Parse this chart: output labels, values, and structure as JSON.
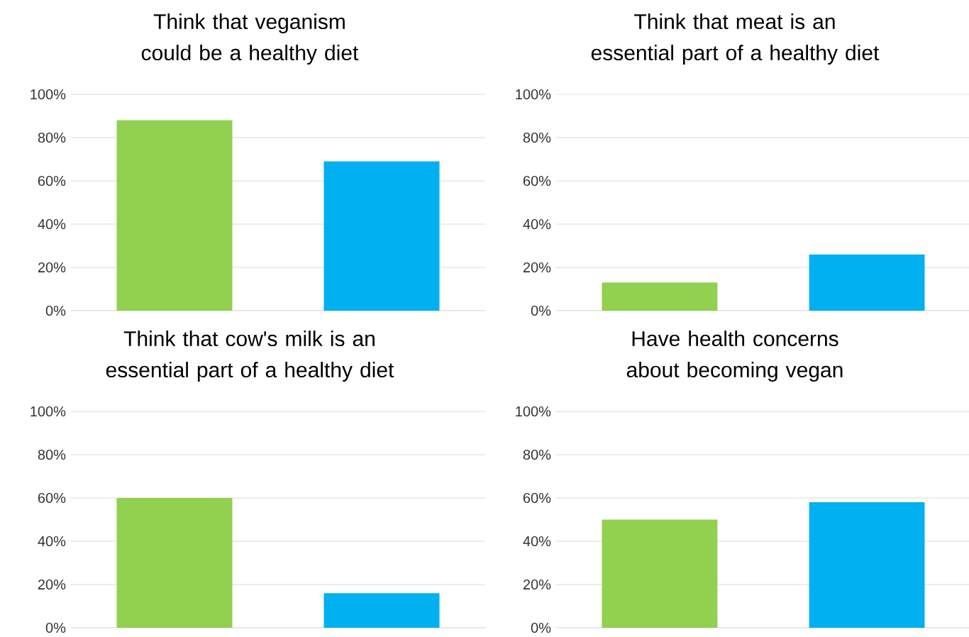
{
  "chart_data": [
    {
      "type": "bar",
      "title": "Think that veganism could be a healthy diet",
      "categories": [
        null,
        null
      ],
      "values": [
        88,
        69
      ],
      "colors": [
        "#92d050",
        "#00b0f0"
      ],
      "ylim": [
        0,
        100
      ],
      "yticks": [
        {
          "value": 0,
          "label": "0%"
        },
        {
          "value": 20,
          "label": "20%"
        },
        {
          "value": 40,
          "label": "40%"
        },
        {
          "value": 60,
          "label": "60%"
        },
        {
          "value": 80,
          "label": "80%"
        },
        {
          "value": 100,
          "label": "100%"
        }
      ],
      "grid": "y"
    },
    {
      "type": "bar",
      "title": "Think that meat is an essential part of a healthy diet",
      "categories": [
        null,
        null
      ],
      "values": [
        13,
        26
      ],
      "colors": [
        "#92d050",
        "#00b0f0"
      ],
      "ylim": [
        0,
        100
      ],
      "yticks": [
        {
          "value": 0,
          "label": "0%"
        },
        {
          "value": 20,
          "label": "20%"
        },
        {
          "value": 40,
          "label": "40%"
        },
        {
          "value": 60,
          "label": "60%"
        },
        {
          "value": 80,
          "label": "80%"
        },
        {
          "value": 100,
          "label": "100%"
        }
      ],
      "grid": "y"
    },
    {
      "type": "bar",
      "title": "Think that cow's milk is an essential part of a healthy diet",
      "categories": [
        null,
        null
      ],
      "values": [
        60,
        16
      ],
      "colors": [
        "#92d050",
        "#00b0f0"
      ],
      "ylim": [
        0,
        100
      ],
      "yticks": [
        {
          "value": 0,
          "label": "0%"
        },
        {
          "value": 20,
          "label": "20%"
        },
        {
          "value": 40,
          "label": "40%"
        },
        {
          "value": 60,
          "label": "60%"
        },
        {
          "value": 80,
          "label": "80%"
        },
        {
          "value": 100,
          "label": "100%"
        }
      ],
      "grid": "y"
    },
    {
      "type": "bar",
      "title": "Have health concerns about becoming vegan",
      "categories": [
        null,
        null
      ],
      "values": [
        50,
        58
      ],
      "colors": [
        "#92d050",
        "#00b0f0"
      ],
      "ylim": [
        0,
        100
      ],
      "yticks": [
        {
          "value": 0,
          "label": "0%"
        },
        {
          "value": 20,
          "label": "20%"
        },
        {
          "value": 40,
          "label": "40%"
        },
        {
          "value": 60,
          "label": "60%"
        },
        {
          "value": 80,
          "label": "80%"
        },
        {
          "value": 100,
          "label": "100%"
        }
      ],
      "grid": "y"
    }
  ]
}
